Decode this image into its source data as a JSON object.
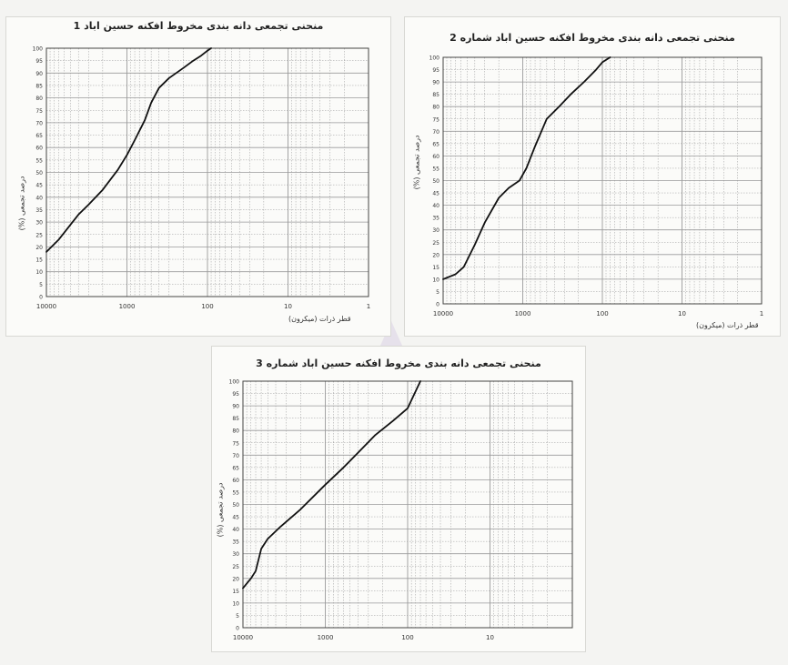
{
  "chart_data": [
    {
      "type": "line",
      "title": "منحنی تجمعی دانه بندی مخروط افکنه حسین اباد 1",
      "xlabel": "قطر ذرات (میکرون)",
      "ylabel": "درصد تجمعی (%)",
      "x_scale": "log",
      "xlim": [
        10000,
        1
      ],
      "ylim": [
        0,
        100
      ],
      "x_ticks": [
        "10000",
        "1000",
        "100",
        "10",
        "1"
      ],
      "y_ticks": [
        0,
        5,
        10,
        15,
        20,
        25,
        30,
        35,
        40,
        45,
        50,
        55,
        60,
        65,
        70,
        75,
        80,
        85,
        90,
        95,
        100
      ],
      "grid": true,
      "series": [
        {
          "x": [
            10000,
            7000,
            5000,
            4000,
            3000,
            2000,
            1300,
            1000,
            800,
            600,
            500,
            400,
            300,
            200,
            150,
            120,
            100,
            90
          ],
          "y": [
            18,
            23,
            29,
            33,
            37,
            43,
            51,
            57,
            63,
            71,
            78,
            84,
            88,
            92,
            95,
            97,
            99,
            100
          ]
        }
      ]
    },
    {
      "type": "line",
      "title": "منحنی تجمعی دانه بندی مخروط افکنه حسین اباد شماره 2",
      "xlabel": "قطر ذرات (میکرون)",
      "ylabel": "درصد تجمعی (%)",
      "x_scale": "log",
      "xlim": [
        10000,
        1
      ],
      "ylim": [
        0,
        100
      ],
      "x_ticks": [
        "10000",
        "1000",
        "100",
        "10",
        "1"
      ],
      "y_ticks": [
        0,
        5,
        10,
        15,
        20,
        25,
        30,
        35,
        40,
        45,
        50,
        55,
        60,
        65,
        70,
        75,
        80,
        85,
        90,
        95,
        100
      ],
      "grid": true,
      "series": [
        {
          "x": [
            10000,
            7000,
            5500,
            4000,
            3000,
            2000,
            1500,
            1100,
            900,
            700,
            500,
            350,
            250,
            170,
            120,
            100,
            80
          ],
          "y": [
            10,
            12,
            15,
            24,
            33,
            43,
            47,
            50,
            55,
            64,
            75,
            80,
            85,
            90,
            95,
            98,
            100
          ]
        }
      ]
    },
    {
      "type": "line",
      "title": "منحنی تجمعی دانه بندی مخروط افکنه حسین اباد شماره 3",
      "xlabel": "",
      "ylabel": "درصد تجمعی (%)",
      "x_scale": "log",
      "xlim": [
        10000,
        1
      ],
      "ylim": [
        0,
        100
      ],
      "x_ticks": [
        "10000",
        "1000",
        "100",
        "10"
      ],
      "y_ticks": [
        0,
        5,
        10,
        15,
        20,
        25,
        30,
        35,
        40,
        45,
        50,
        55,
        60,
        65,
        70,
        75,
        80,
        85,
        90,
        95,
        100
      ],
      "grid": true,
      "series": [
        {
          "x": [
            10000,
            8000,
            7000,
            6000,
            5000,
            3500,
            2000,
            1000,
            600,
            400,
            250,
            150,
            100,
            70
          ],
          "y": [
            16,
            20,
            23,
            32,
            36,
            41,
            48,
            58,
            65,
            71,
            78,
            84,
            89,
            100
          ]
        }
      ]
    }
  ],
  "colors": {
    "curve": "#111111",
    "grid": "#9a9a9a",
    "watermark": "#ddd6e6"
  }
}
